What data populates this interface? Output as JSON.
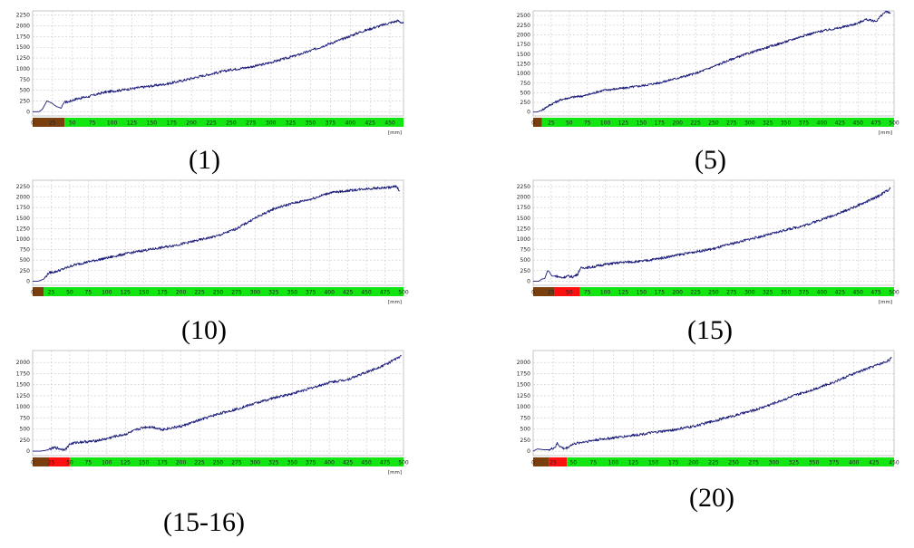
{
  "colors": {
    "line": "#1a1a7a",
    "green": "#12e512",
    "brown": "#7a3f0e",
    "red": "#ff1010"
  },
  "chart_data": [
    {
      "caption": "(1)",
      "type": "line",
      "yticks": [
        0,
        250,
        500,
        750,
        1000,
        1250,
        1500,
        1750,
        2000,
        2250
      ],
      "xticks": [
        0,
        25,
        50,
        75,
        100,
        125,
        150,
        175,
        200,
        225,
        250,
        275,
        300,
        325,
        350,
        375,
        400,
        425,
        450
      ],
      "xlim": [
        0,
        467
      ],
      "ylim": [
        -100,
        2350
      ],
      "unit": "[mm]",
      "bands": [
        {
          "from": 0,
          "to": 40,
          "color": "brown"
        },
        {
          "from": 40,
          "to": 467,
          "color": "green"
        }
      ],
      "series": [
        {
          "x": [
            0,
            8,
            12,
            18,
            24,
            30,
            36,
            38,
            40,
            45,
            55,
            70,
            90,
            110,
            130,
            150,
            170,
            190,
            210,
            230,
            250,
            270,
            290,
            310,
            330,
            350,
            370,
            390,
            410,
            430,
            450,
            460,
            467
          ],
          "y": [
            0,
            0,
            50,
            250,
            200,
            120,
            80,
            170,
            220,
            230,
            300,
            350,
            450,
            500,
            550,
            600,
            650,
            730,
            820,
            900,
            980,
            1030,
            1100,
            1200,
            1300,
            1420,
            1560,
            1690,
            1840,
            1960,
            2070,
            2120,
            2060
          ]
        }
      ]
    },
    {
      "caption": "(5)",
      "type": "line",
      "yticks": [
        0,
        250,
        500,
        750,
        1000,
        1250,
        1500,
        1750,
        2000,
        2250,
        2500
      ],
      "xticks": [
        0,
        25,
        50,
        75,
        100,
        125,
        150,
        175,
        200,
        225,
        250,
        275,
        300,
        325,
        350,
        375,
        400,
        425,
        450,
        475,
        500
      ],
      "xlim": [
        0,
        500
      ],
      "ylim": [
        -100,
        2620
      ],
      "unit": "[mm]",
      "bands": [
        {
          "from": 0,
          "to": 12,
          "color": "brown"
        },
        {
          "from": 12,
          "to": 500,
          "color": "green"
        }
      ],
      "series": [
        {
          "x": [
            0,
            5,
            12,
            20,
            30,
            40,
            50,
            60,
            70,
            80,
            90,
            100,
            125,
            150,
            175,
            200,
            225,
            250,
            275,
            300,
            325,
            350,
            375,
            400,
            425,
            450,
            460,
            475,
            485,
            490,
            495
          ],
          "y": [
            0,
            0,
            50,
            150,
            250,
            330,
            370,
            400,
            420,
            470,
            530,
            570,
            620,
            680,
            760,
            880,
            1000,
            1180,
            1370,
            1530,
            1680,
            1820,
            1980,
            2100,
            2180,
            2300,
            2400,
            2350,
            2550,
            2600,
            2550
          ]
        }
      ]
    },
    {
      "caption": "(10)",
      "type": "line",
      "yticks": [
        0,
        250,
        500,
        750,
        1000,
        1250,
        1500,
        1750,
        2000,
        2250
      ],
      "xticks": [
        0,
        25,
        50,
        75,
        100,
        125,
        150,
        175,
        200,
        225,
        250,
        275,
        300,
        325,
        350,
        375,
        400,
        425,
        450,
        475,
        500
      ],
      "xlim": [
        0,
        500
      ],
      "ylim": [
        -100,
        2400
      ],
      "unit": "[mm]",
      "bands": [
        {
          "from": 0,
          "to": 15,
          "color": "brown"
        },
        {
          "from": 15,
          "to": 500,
          "color": "green"
        }
      ],
      "series": [
        {
          "x": [
            0,
            8,
            15,
            22,
            30,
            40,
            55,
            75,
            100,
            125,
            150,
            175,
            200,
            225,
            250,
            275,
            300,
            325,
            350,
            375,
            400,
            425,
            450,
            475,
            490,
            495
          ],
          "y": [
            0,
            0,
            50,
            200,
            220,
            280,
            380,
            460,
            550,
            650,
            730,
            800,
            880,
            980,
            1080,
            1250,
            1500,
            1720,
            1850,
            1950,
            2100,
            2150,
            2200,
            2220,
            2250,
            2150
          ]
        }
      ]
    },
    {
      "caption": "(15)",
      "type": "line",
      "yticks": [
        0,
        250,
        500,
        750,
        1000,
        1250,
        1500,
        1750,
        2000,
        2250
      ],
      "xticks": [
        0,
        25,
        50,
        75,
        100,
        125,
        150,
        175,
        200,
        225,
        250,
        275,
        300,
        325,
        350,
        375,
        400,
        425,
        450,
        475,
        500
      ],
      "xlim": [
        0,
        500
      ],
      "ylim": [
        -100,
        2400
      ],
      "unit": "[mm]",
      "bands": [
        {
          "from": 0,
          "to": 30,
          "color": "brown"
        },
        {
          "from": 30,
          "to": 65,
          "color": "red"
        },
        {
          "from": 65,
          "to": 500,
          "color": "green"
        }
      ],
      "series": [
        {
          "x": [
            0,
            8,
            12,
            16,
            20,
            22,
            26,
            32,
            40,
            48,
            55,
            62,
            65,
            70,
            80,
            100,
            125,
            150,
            175,
            200,
            225,
            250,
            275,
            300,
            325,
            350,
            375,
            400,
            425,
            450,
            475,
            490,
            495
          ],
          "y": [
            0,
            0,
            50,
            60,
            250,
            230,
            120,
            120,
            80,
            120,
            100,
            170,
            300,
            320,
            330,
            400,
            450,
            470,
            540,
            620,
            700,
            770,
            890,
            1000,
            1100,
            1220,
            1320,
            1470,
            1620,
            1800,
            1990,
            2150,
            2200
          ]
        }
      ]
    },
    {
      "caption": "(15-16)",
      "type": "line",
      "yticks": [
        0,
        250,
        500,
        750,
        1000,
        1250,
        1500,
        1750,
        2000
      ],
      "xticks": [
        0,
        25,
        50,
        75,
        100,
        125,
        150,
        175,
        200,
        225,
        250,
        275,
        300,
        325,
        350,
        375,
        400,
        425,
        450,
        475,
        500
      ],
      "xlim": [
        0,
        500
      ],
      "ylim": [
        -100,
        2270
      ],
      "unit": "[mm]",
      "bands": [
        {
          "from": 0,
          "to": 22,
          "color": "brown"
        },
        {
          "from": 22,
          "to": 50,
          "color": "red"
        },
        {
          "from": 50,
          "to": 500,
          "color": "green"
        }
      ],
      "series": [
        {
          "x": [
            0,
            10,
            18,
            22,
            30,
            40,
            45,
            50,
            60,
            80,
            100,
            110,
            125,
            140,
            150,
            160,
            175,
            200,
            225,
            250,
            275,
            300,
            325,
            350,
            375,
            400,
            425,
            450,
            475,
            490,
            497
          ],
          "y": [
            0,
            0,
            20,
            40,
            80,
            40,
            50,
            160,
            200,
            220,
            280,
            330,
            380,
            480,
            540,
            550,
            490,
            560,
            700,
            840,
            950,
            1080,
            1200,
            1300,
            1420,
            1550,
            1620,
            1780,
            1950,
            2080,
            2150
          ]
        }
      ]
    },
    {
      "caption": "(20)",
      "type": "line",
      "yticks": [
        0,
        250,
        500,
        750,
        1000,
        1250,
        1500,
        1750,
        2000
      ],
      "xticks": [
        0,
        25,
        50,
        75,
        100,
        125,
        150,
        175,
        200,
        225,
        250,
        275,
        300,
        325,
        350,
        375,
        400,
        425,
        450
      ],
      "xlim": [
        0,
        450
      ],
      "ylim": [
        -100,
        2270
      ],
      "unit": "",
      "bands": [
        {
          "from": 0,
          "to": 20,
          "color": "brown"
        },
        {
          "from": 20,
          "to": 42,
          "color": "red"
        },
        {
          "from": 42,
          "to": 450,
          "color": "green"
        }
      ],
      "series": [
        {
          "x": [
            0,
            5,
            15,
            22,
            28,
            30,
            34,
            38,
            42,
            48,
            60,
            80,
            100,
            125,
            150,
            175,
            200,
            225,
            250,
            275,
            300,
            325,
            350,
            375,
            400,
            425,
            440,
            447
          ],
          "y": [
            0,
            50,
            30,
            40,
            100,
            180,
            100,
            60,
            70,
            150,
            200,
            260,
            300,
            360,
            420,
            480,
            560,
            680,
            800,
            920,
            1080,
            1250,
            1400,
            1560,
            1750,
            1920,
            2020,
            2100
          ]
        }
      ]
    }
  ]
}
